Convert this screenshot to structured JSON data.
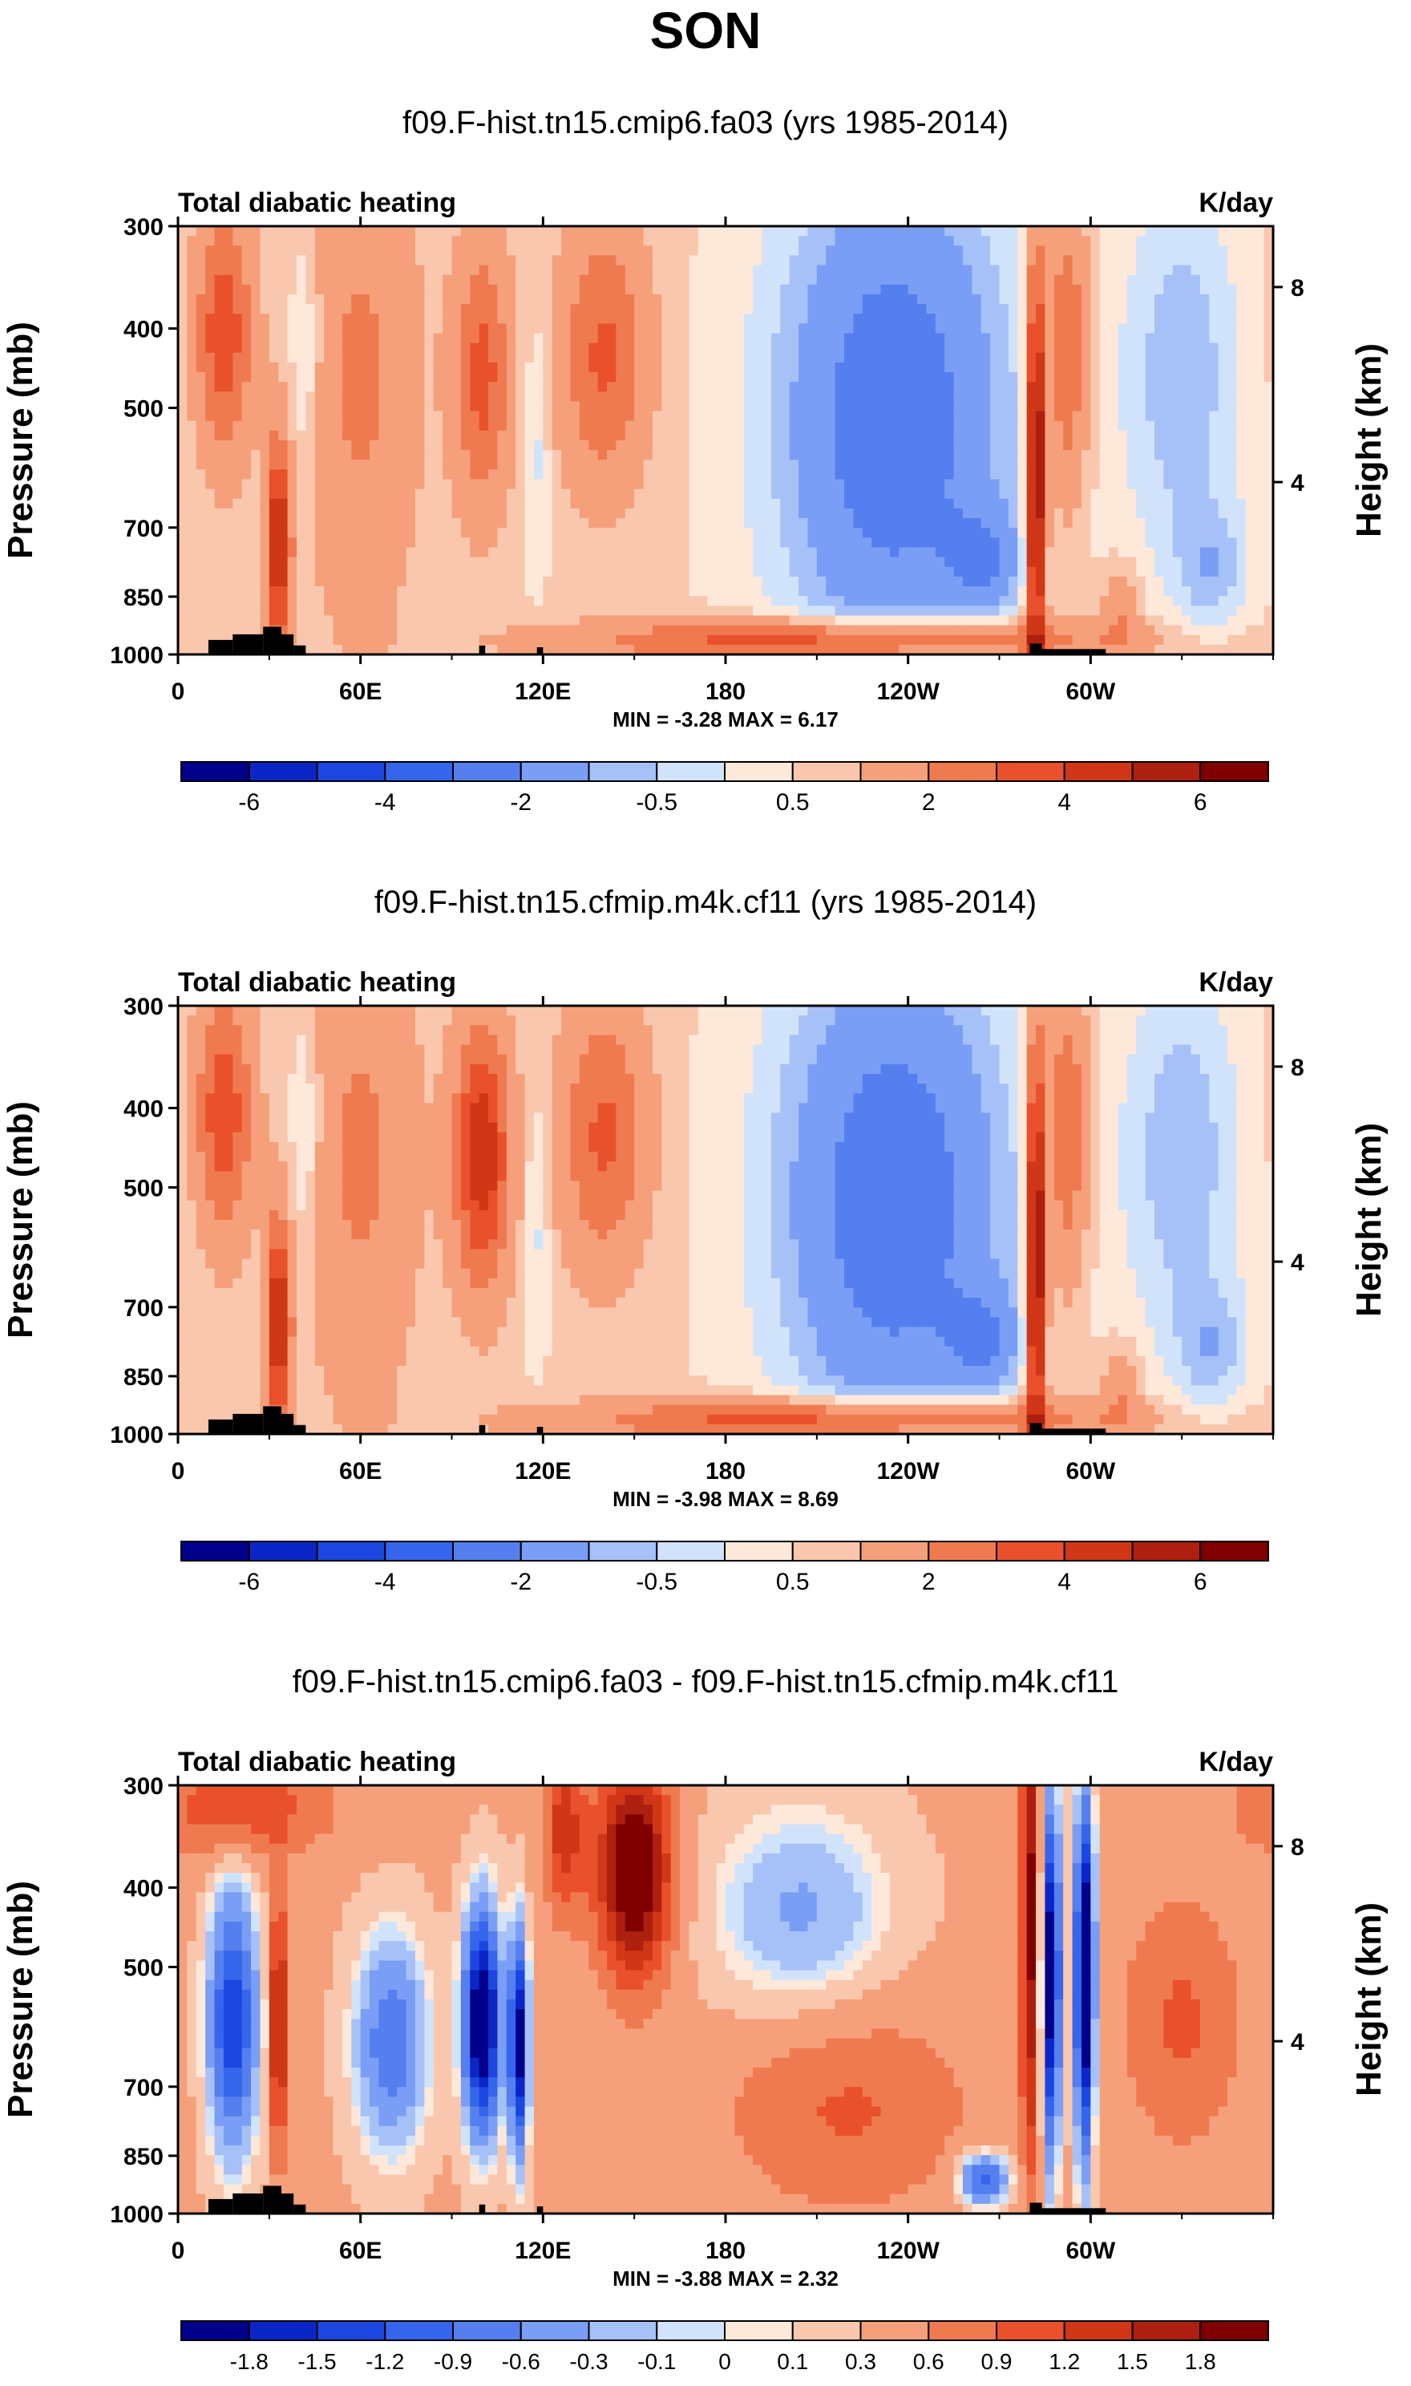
{
  "figure_title": "SON",
  "chart_data": [
    {
      "type": "heatmap",
      "title": "f09.F-hist.tn15.cmip6.fa03 (yrs 1985-2014)",
      "left_label": "Total diabatic heating",
      "right_label": "K/day",
      "ylabel": "Pressure (mb)",
      "ylabel_right": "Height (km)",
      "pressure_ticks": [
        "300",
        "400",
        "500",
        "700",
        "850",
        "1000"
      ],
      "height_ticks": [
        "8",
        "4"
      ],
      "lon_ticks": [
        "0",
        "60E",
        "120E",
        "180",
        "120W",
        "60W"
      ],
      "stats": "MIN =  -3.28  MAX =   6.17",
      "min": -3.28,
      "max": 6.17,
      "colorbar_labels": [
        "-6",
        "-4",
        "-2",
        "-0.5",
        "0.5",
        "2",
        "4",
        "6"
      ],
      "levels": [
        -7,
        -6,
        -5,
        -4,
        -3,
        -2,
        -1,
        -0.5,
        0,
        0.5,
        1,
        2,
        3,
        4,
        5,
        6,
        7
      ],
      "ylim": [
        1000,
        300
      ],
      "xlim": [
        0,
        360
      ]
    },
    {
      "type": "heatmap",
      "title": "f09.F-hist.tn15.cfmip.m4k.cf11 (yrs 1985-2014)",
      "left_label": "Total diabatic heating",
      "right_label": "K/day",
      "ylabel": "Pressure (mb)",
      "ylabel_right": "Height (km)",
      "pressure_ticks": [
        "300",
        "400",
        "500",
        "700",
        "850",
        "1000"
      ],
      "height_ticks": [
        "8",
        "4"
      ],
      "lon_ticks": [
        "0",
        "60E",
        "120E",
        "180",
        "120W",
        "60W"
      ],
      "stats": "MIN =  -3.98  MAX =   8.69",
      "min": -3.98,
      "max": 8.69,
      "colorbar_labels": [
        "-6",
        "-4",
        "-2",
        "-0.5",
        "0.5",
        "2",
        "4",
        "6"
      ],
      "levels": [
        -7,
        -6,
        -5,
        -4,
        -3,
        -2,
        -1,
        -0.5,
        0,
        0.5,
        1,
        2,
        3,
        4,
        5,
        6,
        7
      ],
      "ylim": [
        1000,
        300
      ],
      "xlim": [
        0,
        360
      ]
    },
    {
      "type": "heatmap",
      "title": "f09.F-hist.tn15.cmip6.fa03 - f09.F-hist.tn15.cfmip.m4k.cf11",
      "left_label": "Total diabatic heating",
      "right_label": "K/day",
      "ylabel": "Pressure (mb)",
      "ylabel_right": "Height (km)",
      "pressure_ticks": [
        "300",
        "400",
        "500",
        "700",
        "850",
        "1000"
      ],
      "height_ticks": [
        "8",
        "4"
      ],
      "lon_ticks": [
        "0",
        "60E",
        "120E",
        "180",
        "120W",
        "60W"
      ],
      "stats": "MIN =  -3.88  MAX =   2.32",
      "min": -3.88,
      "max": 2.32,
      "colorbar_labels": [
        "-1.8",
        "-1.5",
        "-1.2",
        "-0.9",
        "-0.6",
        "-0.3",
        "-0.1",
        "0",
        "0.1",
        "0.3",
        "0.6",
        "0.9",
        "1.2",
        "1.5",
        "1.8"
      ],
      "levels": [
        -2.1,
        -1.8,
        -1.5,
        -1.2,
        -0.9,
        -0.6,
        -0.3,
        -0.1,
        0,
        0.1,
        0.3,
        0.6,
        0.9,
        1.2,
        1.5,
        1.8,
        2.1
      ],
      "ylim": [
        1000,
        300
      ],
      "xlim": [
        0,
        360
      ]
    }
  ],
  "colors": {
    "palette": [
      "#00008b",
      "#0b26c7",
      "#1c46e0",
      "#3565ec",
      "#557fee",
      "#7a9ef5",
      "#a6c1f8",
      "#d1e3fb",
      "#fde8d9",
      "#f9c7ad",
      "#f5a07b",
      "#f07a50",
      "#e9512c",
      "#cf3717",
      "#ad1f0e",
      "#800000"
    ],
    "topography": "#000000",
    "frame": "#000000"
  }
}
